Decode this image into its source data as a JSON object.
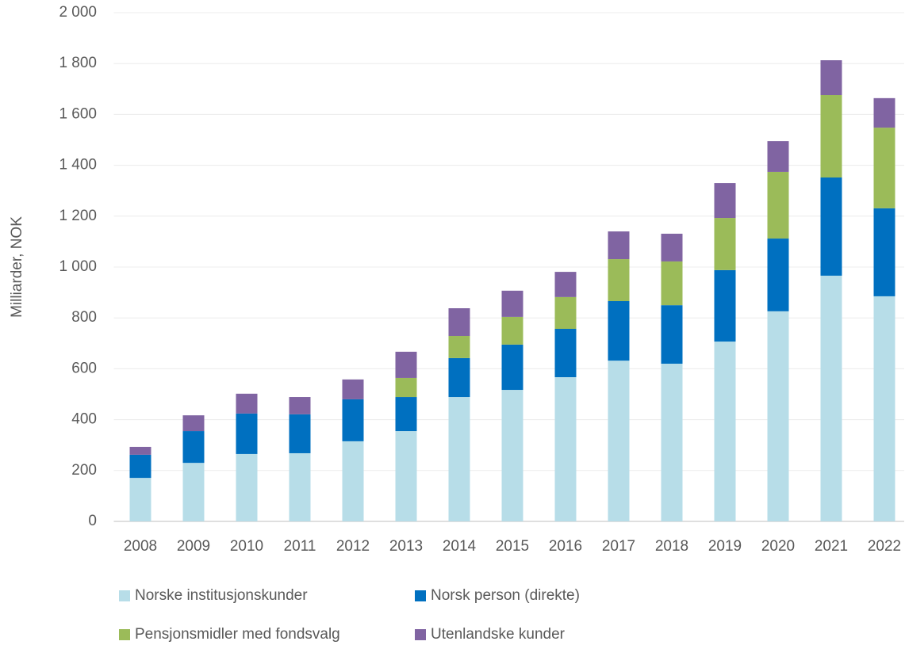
{
  "chart_data": {
    "type": "stacked_bar",
    "y_axis_label": "Milliarder, NOK",
    "categories": [
      "2008",
      "2009",
      "2010",
      "2011",
      "2012",
      "2013",
      "2014",
      "2015",
      "2016",
      "2017",
      "2018",
      "2019",
      "2020",
      "2021",
      "2022"
    ],
    "series": [
      {
        "name": "Norske institusjonskunder",
        "color": "#b7dde8",
        "values": [
          171,
          230,
          265,
          268,
          315,
          355,
          489,
          517,
          567,
          632,
          620,
          707,
          826,
          966,
          885
        ]
      },
      {
        "name": "Norsk person (direkte)",
        "color": "#0070c0",
        "values": [
          91,
          125,
          159,
          153,
          165,
          134,
          153,
          178,
          190,
          234,
          230,
          281,
          286,
          386,
          346
        ]
      },
      {
        "name": "Pensjonsmidler med fondsvalg",
        "color": "#9bbb59",
        "values": [
          0,
          0,
          0,
          0,
          0,
          75,
          87,
          109,
          125,
          165,
          172,
          205,
          262,
          324,
          317
        ]
      },
      {
        "name": "Utenlandske kunder",
        "color": "#8064a2",
        "values": [
          31,
          62,
          78,
          68,
          78,
          103,
          109,
          103,
          99,
          109,
          109,
          137,
          121,
          137,
          116
        ]
      }
    ],
    "ylim": [
      0,
      2000
    ],
    "yticks": [
      0,
      200,
      400,
      600,
      800,
      {
        "value": 1000,
        "label": "1 000"
      },
      {
        "value": 1200,
        "label": "1 200"
      },
      {
        "value": 1400,
        "label": "1 400"
      },
      {
        "value": 1600,
        "label": "1 600"
      },
      {
        "value": 1800,
        "label": "1 800"
      },
      {
        "value": 2000,
        "label": "2 000"
      }
    ],
    "grid": true
  }
}
